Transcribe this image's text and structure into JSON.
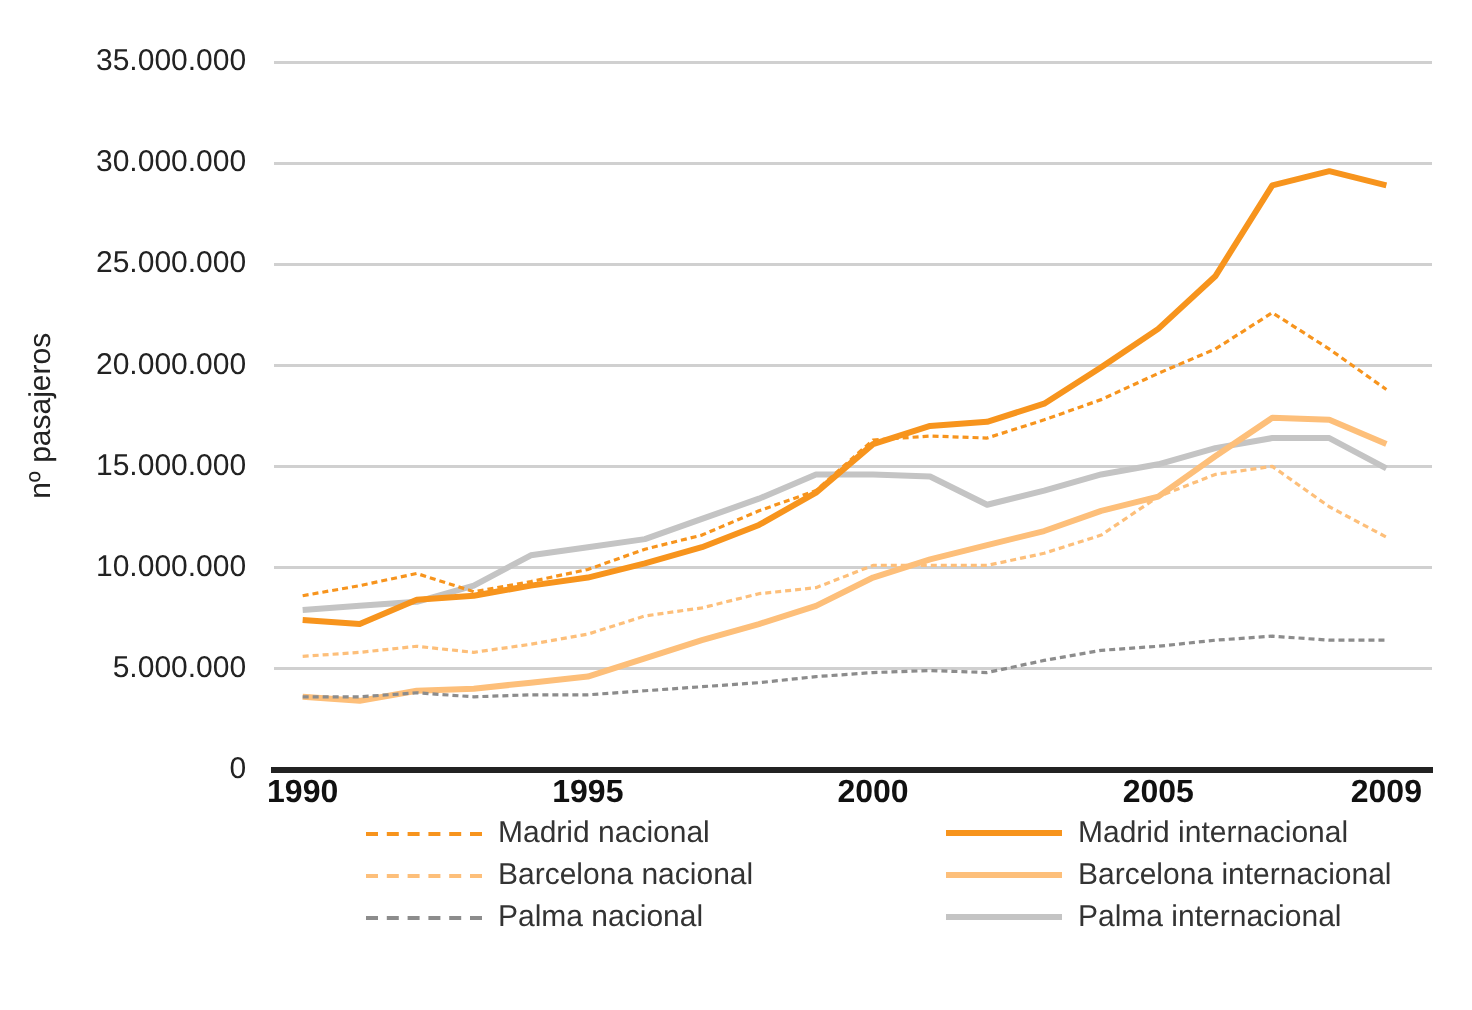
{
  "chart_data": {
    "type": "line",
    "ylabel": "nº pasajeros",
    "x": [
      1990,
      1991,
      1992,
      1993,
      1994,
      1995,
      1996,
      1997,
      1998,
      1999,
      2000,
      2001,
      2002,
      2003,
      2004,
      2005,
      2006,
      2007,
      2008,
      2009
    ],
    "series": [
      {
        "name": "Madrid nacional",
        "color": "#f7941d",
        "line_style": "dashed",
        "values": [
          8600000,
          9100000,
          9700000,
          8800000,
          9300000,
          9900000,
          10900000,
          11600000,
          12800000,
          13800000,
          16300000,
          16500000,
          16400000,
          17300000,
          18300000,
          19600000,
          20800000,
          22600000,
          20800000,
          18800000
        ]
      },
      {
        "name": "Madrid internacional",
        "color": "#f7941d",
        "line_style": "solid",
        "values": [
          7400000,
          7200000,
          8400000,
          8600000,
          9100000,
          9500000,
          10200000,
          11000000,
          12100000,
          13700000,
          16100000,
          17000000,
          17200000,
          18100000,
          19900000,
          21800000,
          24400000,
          28900000,
          29600000,
          28900000
        ]
      },
      {
        "name": "Barcelona nacional",
        "color": "#fdbf7a",
        "line_style": "dashed",
        "values": [
          5600000,
          5800000,
          6100000,
          5800000,
          6200000,
          6700000,
          7600000,
          8000000,
          8700000,
          9000000,
          10100000,
          10100000,
          10100000,
          10700000,
          11600000,
          13500000,
          14600000,
          15000000,
          13000000,
          11500000
        ]
      },
      {
        "name": "Barcelona internacional",
        "color": "#fdbf7a",
        "line_style": "solid",
        "values": [
          3600000,
          3400000,
          3900000,
          4000000,
          4300000,
          4600000,
          5500000,
          6400000,
          7200000,
          8100000,
          9500000,
          10400000,
          11100000,
          11800000,
          12800000,
          13500000,
          15500000,
          17400000,
          17300000,
          16100000
        ]
      },
      {
        "name": "Palma nacional",
        "color": "#8c8c8c",
        "line_style": "dashed",
        "values": [
          3600000,
          3600000,
          3800000,
          3600000,
          3700000,
          3700000,
          3900000,
          4100000,
          4300000,
          4600000,
          4800000,
          4900000,
          4800000,
          5400000,
          5900000,
          6100000,
          6400000,
          6600000,
          6400000,
          6400000
        ]
      },
      {
        "name": "Palma internacional",
        "color": "#c4c4c4",
        "line_style": "solid",
        "values": [
          7900000,
          8100000,
          8300000,
          9100000,
          10600000,
          11000000,
          11400000,
          12400000,
          13400000,
          14600000,
          14600000,
          14500000,
          13100000,
          13800000,
          14600000,
          15100000,
          15900000,
          16400000,
          16400000,
          14900000
        ]
      }
    ],
    "xlim": [
      1989.5,
      2009.8
    ],
    "xticks": [
      1990,
      1995,
      2000,
      2005,
      2009
    ],
    "ylim": [
      0,
      35000000
    ],
    "yticks": [
      0,
      {
        "value": 5000000,
        "label": "5.000.000"
      },
      {
        "value": 10000000,
        "label": "10.000.000"
      },
      {
        "value": 15000000,
        "label": "15.000.000"
      },
      {
        "value": 20000000,
        "label": "20.000.000"
      },
      {
        "value": 25000000,
        "label": "25.000.000"
      },
      {
        "value": 30000000,
        "label": "30.000.000"
      },
      {
        "value": 35000000,
        "label": "35.000.000"
      }
    ],
    "grid": "y",
    "legend": "bottom",
    "marker": "none"
  }
}
